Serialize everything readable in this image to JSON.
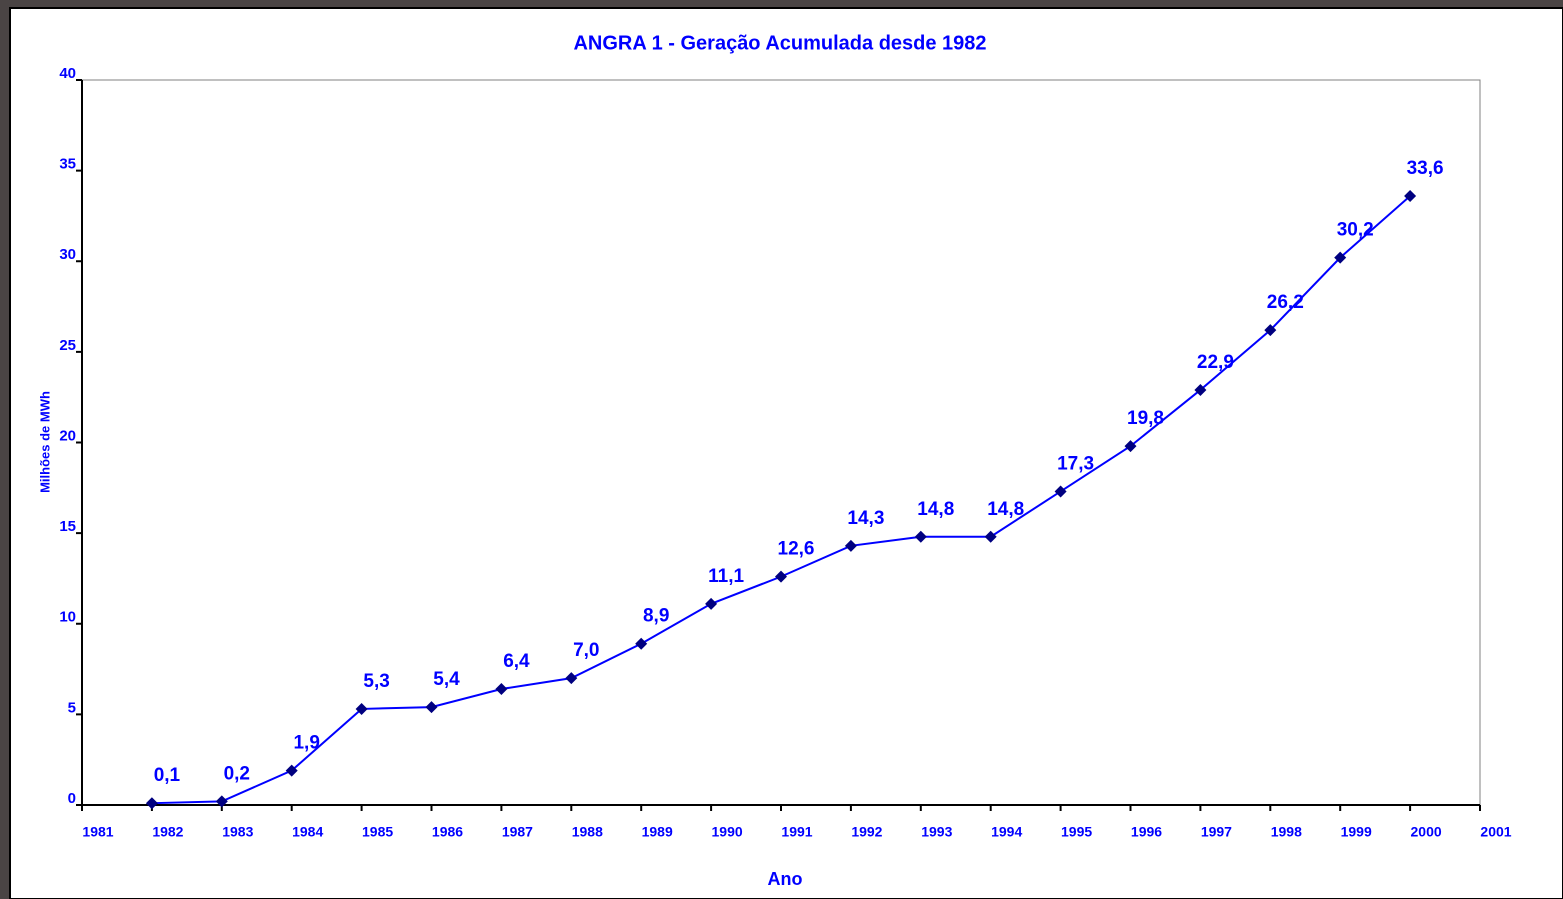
{
  "chart_data": {
    "type": "line",
    "title": "ANGRA 1 - Geração Acumulada desde 1982",
    "x_label": "Ano",
    "y_label": "Milhões de MWh",
    "x": [
      1982,
      1983,
      1984,
      1985,
      1986,
      1987,
      1988,
      1989,
      1990,
      1991,
      1992,
      1993,
      1994,
      1995,
      1996,
      1997,
      1998,
      1999,
      2000
    ],
    "series": [
      {
        "name": "Geração Acumulada",
        "color": "#0000ff",
        "marker_color": "#000080",
        "values": [
          0.1,
          0.2,
          1.9,
          5.3,
          5.4,
          6.4,
          7.0,
          8.9,
          11.1,
          12.6,
          14.3,
          14.8,
          14.8,
          17.3,
          19.8,
          22.9,
          26.2,
          30.2,
          33.6
        ],
        "value_labels": [
          "0,1",
          "0,2",
          "1,9",
          "5,3",
          "5,4",
          "6,4",
          "7,0",
          "8,9",
          "11,1",
          "12,6",
          "14,3",
          "14,8",
          "14,8",
          "17,3",
          "19,8",
          "22,9",
          "26,2",
          "30,2",
          "33,6"
        ]
      }
    ],
    "xlim": [
      1981,
      2001
    ],
    "xticks": [
      1981,
      1982,
      1983,
      1984,
      1985,
      1986,
      1987,
      1988,
      1989,
      1990,
      1991,
      1992,
      1993,
      1994,
      1995,
      1996,
      1997,
      1998,
      1999,
      2000,
      2001
    ],
    "ylim": [
      0,
      40
    ],
    "yticks": [
      0,
      5,
      10,
      15,
      20,
      25,
      30,
      35,
      40
    ],
    "grid": false
  }
}
